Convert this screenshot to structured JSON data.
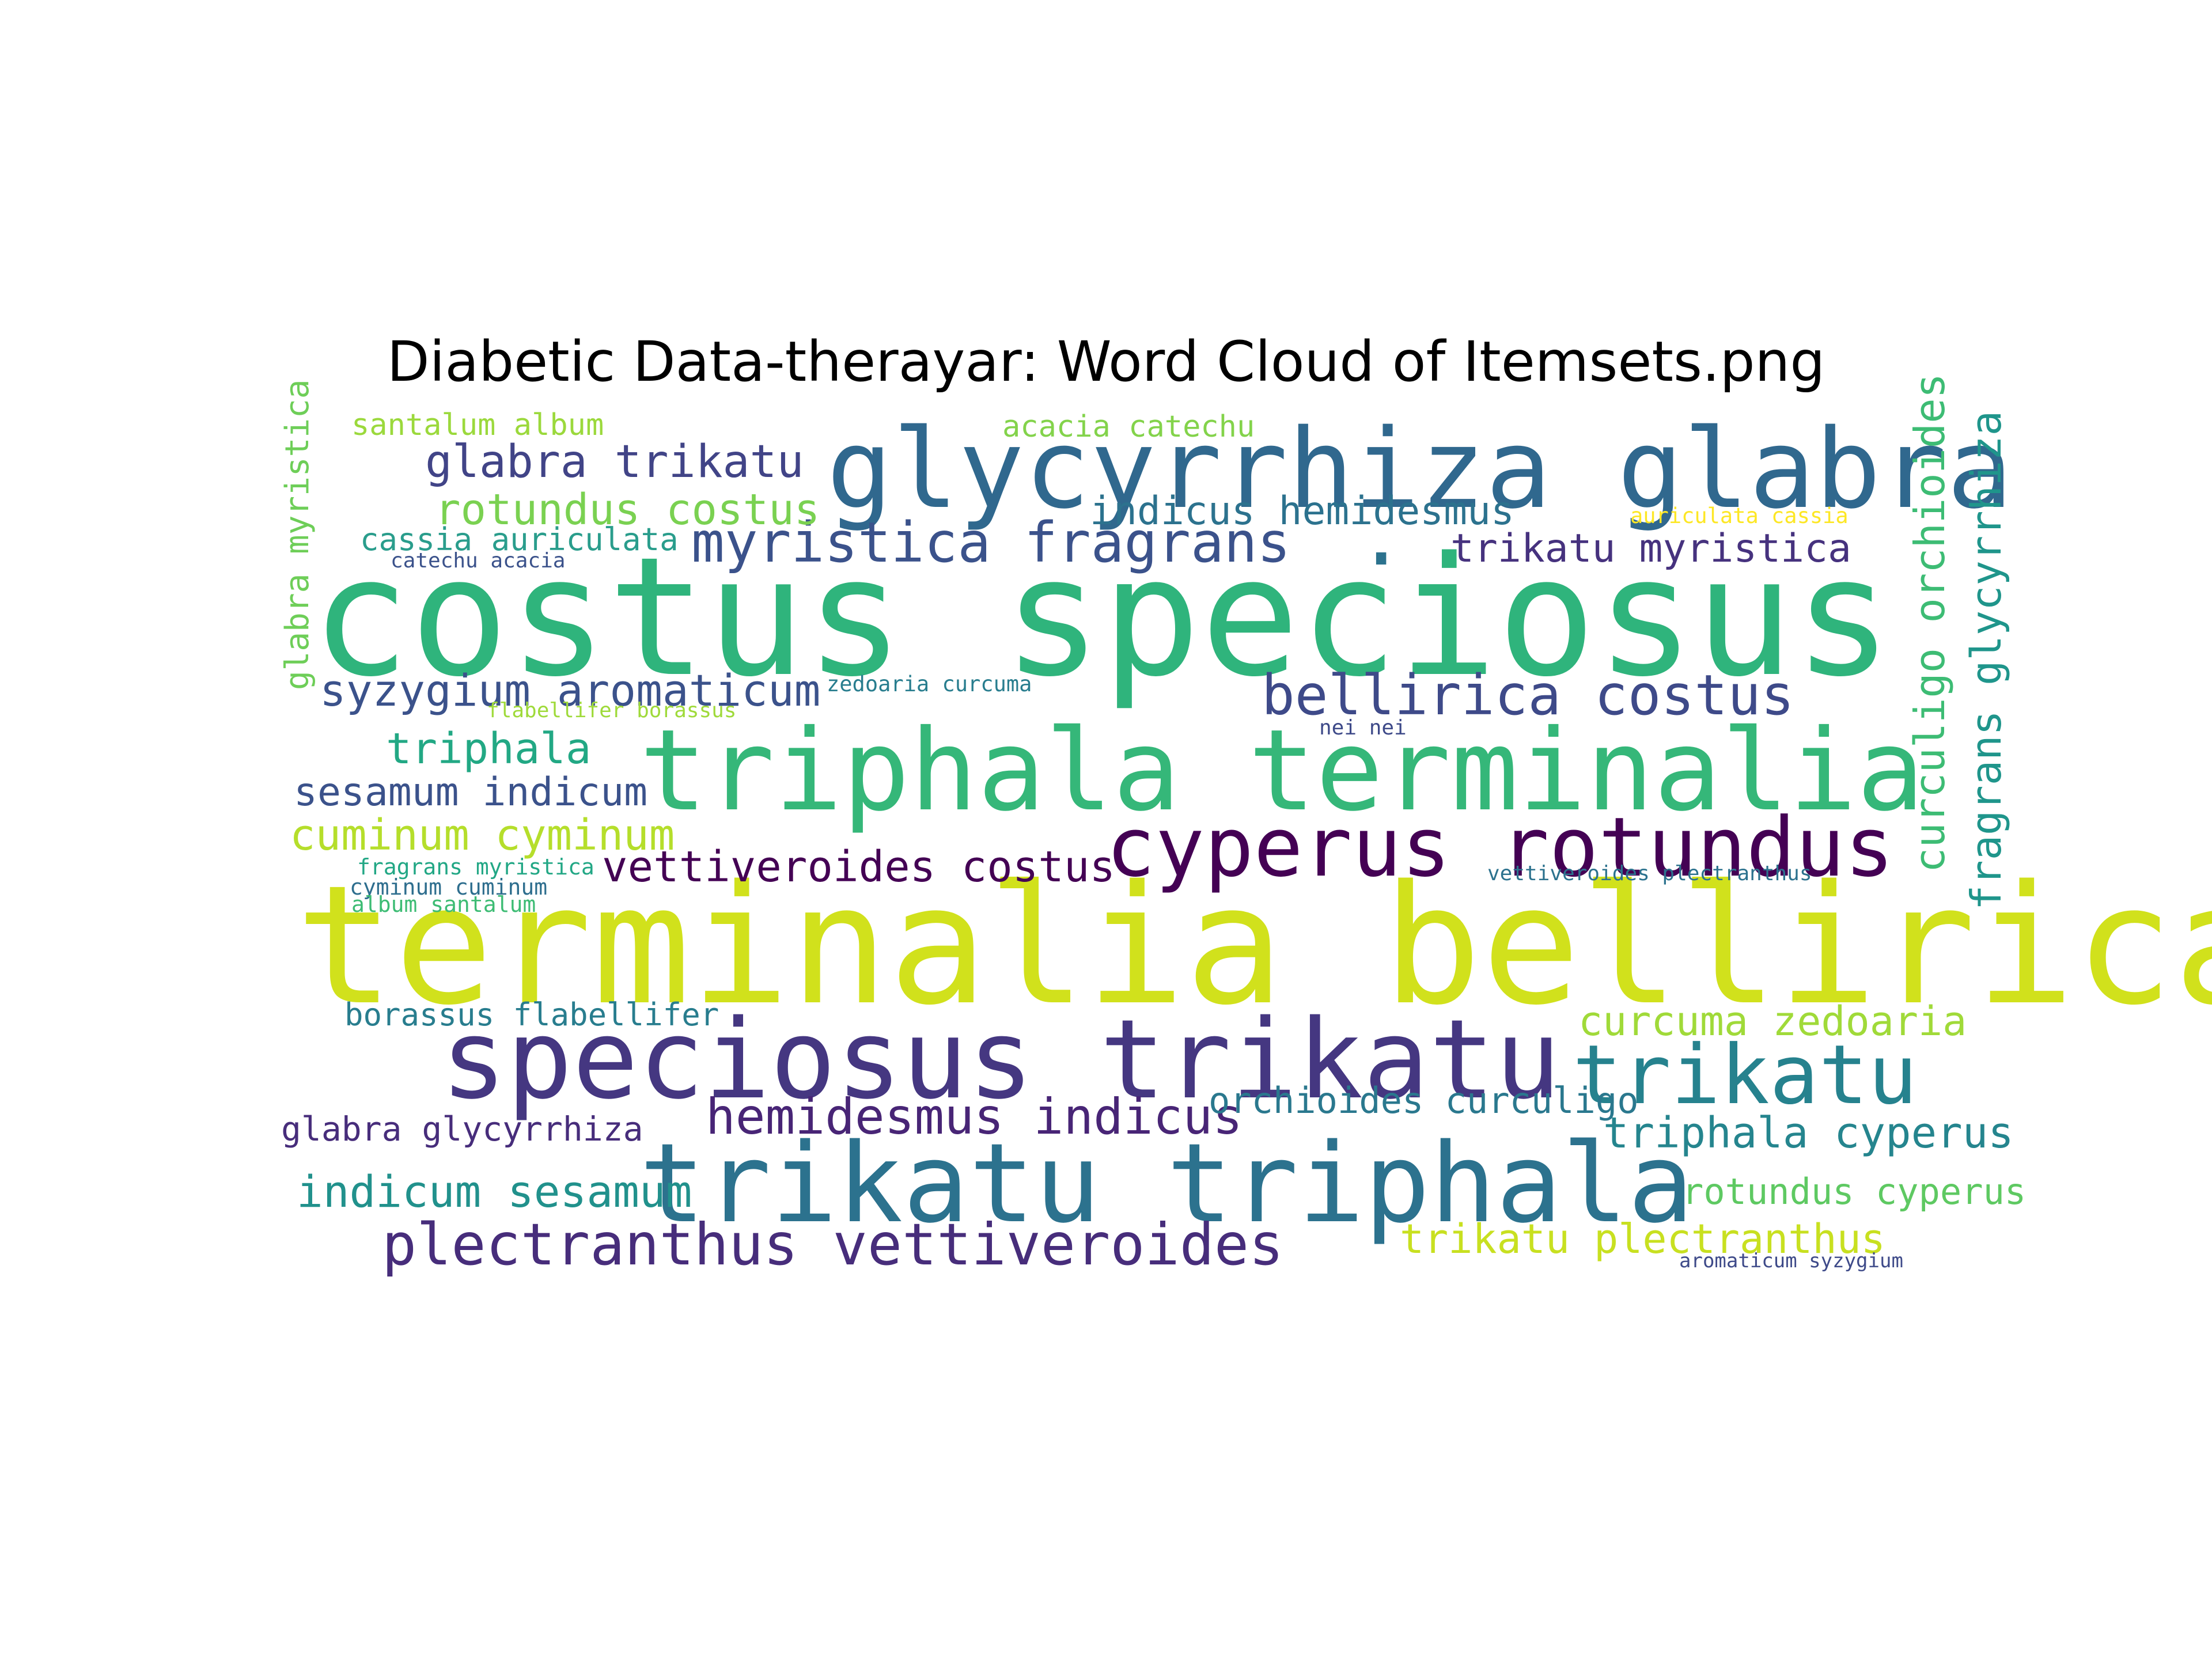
{
  "chart_data": {
    "type": "wordcloud",
    "title": "Diabetic Data-therayar: Word Cloud of Itemsets.png",
    "words": [
      {
        "text": "terminalia bellirica",
        "color": "#d1e11c",
        "weight": 100
      },
      {
        "text": "costus speciosus",
        "color": "#2fb47c",
        "weight": 97
      },
      {
        "text": "triphala terminalia",
        "color": "#35b779",
        "weight": 78
      },
      {
        "text": "speciosus trikatu",
        "color": "#453781",
        "weight": 75
      },
      {
        "text": "trikatu triphala",
        "color": "#2c728e",
        "weight": 72
      },
      {
        "text": "glycyrrhiza glabra",
        "color": "#30688e",
        "weight": 70
      },
      {
        "text": "cyperus rotundus",
        "color": "#440154",
        "weight": 58
      },
      {
        "text": "trikatu",
        "color": "#26828e",
        "weight": 55
      },
      {
        "text": "plectranthus vettiveroides",
        "color": "#472d7b",
        "weight": 42
      },
      {
        "text": "myristica fragrans",
        "color": "#3b528b",
        "weight": 40
      },
      {
        "text": "bellirica costus",
        "color": "#3e4a89",
        "weight": 40
      },
      {
        "text": "hemidesmus indicus",
        "color": "#482576",
        "weight": 35
      },
      {
        "text": "glabra trikatu",
        "color": "#414487",
        "weight": 34
      },
      {
        "text": "syzygium aromaticum",
        "color": "#3b528b",
        "weight": 33
      },
      {
        "text": "indicum sesamum",
        "color": "#21918c",
        "weight": 33
      },
      {
        "text": "triphala cyperus",
        "color": "#25858e",
        "weight": 32
      },
      {
        "text": "rotundus costus",
        "color": "#7ad151",
        "weight": 31
      },
      {
        "text": "triphala",
        "color": "#22a884",
        "weight": 31
      },
      {
        "text": "vettiveroides costus",
        "color": "#440154",
        "weight": 31
      },
      {
        "text": "cuminum cyminum",
        "color": "#b5de2b",
        "weight": 31
      },
      {
        "text": "curculigo orchioides",
        "color": "#3dbc74",
        "weight": 31
      },
      {
        "text": "fragrans glycyrrhiza",
        "color": "#1f958b",
        "weight": 31
      },
      {
        "text": "curcuma zedoaria",
        "color": "#a0da39",
        "weight": 30
      },
      {
        "text": "trikatu plectranthus",
        "color": "#c8e020",
        "weight": 30
      },
      {
        "text": "indicus hemidesmus",
        "color": "#2c728e",
        "weight": 29
      },
      {
        "text": "trikatu myristica",
        "color": "#46327e",
        "weight": 29
      },
      {
        "text": "sesamum indicum",
        "color": "#3b528b",
        "weight": 29
      },
      {
        "text": "rotundus cyperus",
        "color": "#5ec962",
        "weight": 28
      },
      {
        "text": "orchioides curculigo",
        "color": "#2a788e",
        "weight": 28
      },
      {
        "text": "glabra glycyrrhiza",
        "color": "#472d7b",
        "weight": 26
      },
      {
        "text": "glabra myristica",
        "color": "#6ece58",
        "weight": 26
      },
      {
        "text": "cassia auriculata",
        "color": "#2a9d8c",
        "weight": 25
      },
      {
        "text": "borassus flabellifer",
        "color": "#287d8e",
        "weight": 25
      },
      {
        "text": "santalum album",
        "color": "#9bd93c",
        "weight": 24
      },
      {
        "text": "acacia catechu",
        "color": "#83d34b",
        "weight": 24
      },
      {
        "text": "auriculata cassia",
        "color": "#fde725",
        "weight": 17
      },
      {
        "text": "catechu acacia",
        "color": "#3b528b",
        "weight": 17
      },
      {
        "text": "zedoaria curcuma",
        "color": "#287d8e",
        "weight": 17
      },
      {
        "text": "flabellifer borassus",
        "color": "#9fda3a",
        "weight": 17
      },
      {
        "text": "nei nei",
        "color": "#3e4a89",
        "weight": 17
      },
      {
        "text": "fragrans myristica",
        "color": "#22a785",
        "weight": 18
      },
      {
        "text": "cyminum cuminum",
        "color": "#2e6e8e",
        "weight": 18
      },
      {
        "text": "album santalum",
        "color": "#3dbc74",
        "weight": 17
      },
      {
        "text": "vettiveroides plectranthus",
        "color": "#2c728e",
        "weight": 17
      },
      {
        "text": "aromaticum syzygium",
        "color": "#3e4a89",
        "weight": 16
      },
      {
        "text": ".",
        "color": "#2c728e",
        "weight": 55
      }
    ]
  }
}
